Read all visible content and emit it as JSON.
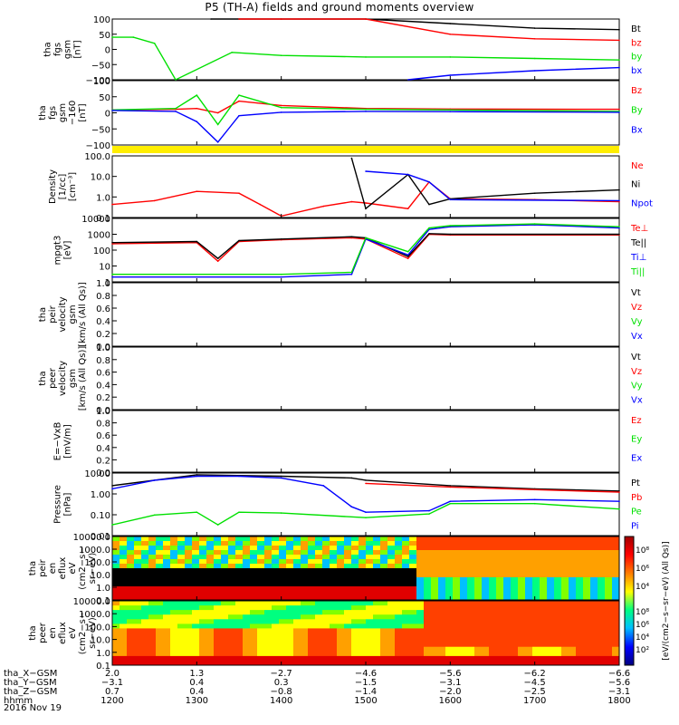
{
  "title": "P5 (TH-A) fields and ground moments overview",
  "date": "2016 Nov 19",
  "colors": {
    "black": "#000000",
    "red": "#ff0000",
    "green": "#00e000",
    "blue": "#0000ff",
    "yellow": "#ffee00"
  },
  "panels": [
    {
      "id": "fgs",
      "ylabel": [
        "tha",
        "fgs",
        "gsm",
        "[nT]"
      ],
      "ticks": [
        "100",
        "50",
        "0",
        "−50",
        "−100"
      ],
      "legend": [
        {
          "text": "Bt",
          "color": "black"
        },
        {
          "text": "bz",
          "color": "red"
        },
        {
          "text": "by",
          "color": "green"
        },
        {
          "text": "bx",
          "color": "blue"
        }
      ]
    },
    {
      "id": "fgs_dsl",
      "ylabel": [
        "tha",
        "fgs",
        "gsm",
        "−160",
        "[nT]"
      ],
      "ticks": [
        "100",
        "50",
        "0",
        "−50",
        "−100"
      ],
      "legend": [
        {
          "text": "Bz",
          "color": "red"
        },
        {
          "text": "By",
          "color": "green"
        },
        {
          "text": "Bx",
          "color": "blue"
        }
      ]
    },
    {
      "id": "density",
      "ylabel": [
        "Density",
        "[1/cc]",
        "[cm⁻³]"
      ],
      "ticks": [
        "100.0",
        "10.0",
        "1.0",
        "0.1"
      ],
      "legend": [
        {
          "text": "Ne",
          "color": "red"
        },
        {
          "text": "Ni",
          "color": "black"
        },
        {
          "text": "Npot",
          "color": "blue"
        }
      ]
    },
    {
      "id": "temp",
      "ylabel": [
        "mpgt3",
        "[eV]"
      ],
      "ticks": [
        "10000",
        "1000",
        "100",
        "10",
        "1"
      ],
      "legend": [
        {
          "text": "Te⊥",
          "color": "red"
        },
        {
          "text": "Te||",
          "color": "black"
        },
        {
          "text": "Ti⊥",
          "color": "blue"
        },
        {
          "text": "Ti||",
          "color": "green"
        }
      ]
    },
    {
      "id": "vel_i",
      "ylabel": [
        "tha",
        "peir",
        "velocity",
        "gsm",
        "[km/s (All Qs)]"
      ],
      "ticks": [
        "1.0",
        "0.8",
        "0.6",
        "0.4",
        "0.2",
        "0.0"
      ],
      "legend": [
        {
          "text": "Vt",
          "color": "black"
        },
        {
          "text": "Vz",
          "color": "red"
        },
        {
          "text": "Vy",
          "color": "green"
        },
        {
          "text": "Vx",
          "color": "blue"
        }
      ]
    },
    {
      "id": "vel_e",
      "ylabel": [
        "tha",
        "peer",
        "velocity",
        "gsm",
        "[km/s (All Qs)]"
      ],
      "ticks": [
        "1.0",
        "0.8",
        "0.6",
        "0.4",
        "0.2",
        "0.0"
      ],
      "legend": [
        {
          "text": "Vt",
          "color": "black"
        },
        {
          "text": "Vz",
          "color": "red"
        },
        {
          "text": "Vy",
          "color": "green"
        },
        {
          "text": "Vx",
          "color": "blue"
        }
      ]
    },
    {
      "id": "efield",
      "ylabel": [
        "E=−VxB",
        "[mV/m]"
      ],
      "ticks": [
        "1.0",
        "0.8",
        "0.6",
        "0.4",
        "0.2",
        "0.0"
      ],
      "legend": [
        {
          "text": "Ez",
          "color": "red"
        },
        {
          "text": "Ey",
          "color": "green"
        },
        {
          "text": "Ex",
          "color": "blue"
        }
      ]
    },
    {
      "id": "pressure",
      "ylabel": [
        "Pressure",
        "[nPa]"
      ],
      "ticks": [
        "10.00",
        "1.00",
        "0.10",
        "0.01"
      ],
      "legend": [
        {
          "text": "Pt",
          "color": "black"
        },
        {
          "text": "Pb",
          "color": "red"
        },
        {
          "text": "Pe",
          "color": "green"
        },
        {
          "text": "Pi",
          "color": "blue"
        }
      ]
    },
    {
      "id": "spec_i",
      "ylabel": [
        "tha",
        "peir",
        "en",
        "eflux",
        "eV",
        "(cm2−s−",
        "sr−eV)"
      ],
      "ticks": [
        "10000.0",
        "1000.0",
        "100.0",
        "10.0",
        "1.0",
        "0.1"
      ],
      "legend": []
    },
    {
      "id": "spec_e",
      "ylabel": [
        "tha",
        "peer",
        "en",
        "eflux",
        "eV",
        "(cm2−s−",
        "sr−eV)"
      ],
      "ticks": [
        "10000.0",
        "1000.0",
        "100.0",
        "10.0",
        "1.0",
        "0.1"
      ],
      "legend": []
    }
  ],
  "colorbar": {
    "ticks": [
      "10⁸",
      "10⁶",
      "10⁴"
    ],
    "ticks2": [
      "10⁸",
      "10⁶",
      "10⁴",
      "10²"
    ],
    "label": "[eV/(cm2−s−sr−eV) (All Qs)]"
  },
  "xaxis": {
    "rows": [
      {
        "label": "tha_X−GSM",
        "values": [
          "2.0",
          "1.3",
          "−2.7",
          "−4.6",
          "−5.6",
          "−6.2",
          "−6.6"
        ]
      },
      {
        "label": "tha_Y−GSM",
        "values": [
          "−3.1",
          "0.4",
          "0.3",
          "−1.5",
          "−3.1",
          "−4.5",
          "−5.6"
        ]
      },
      {
        "label": "tha_Z−GSM",
        "values": [
          "0.7",
          "0.4",
          "−0.8",
          "−1.4",
          "−2.0",
          "−2.5",
          "−3.1"
        ]
      },
      {
        "label": "hhmm",
        "values": [
          "1200",
          "1300",
          "1400",
          "1500",
          "1600",
          "1700",
          "1800"
        ]
      }
    ]
  },
  "chart_data": {
    "type": "line",
    "title": "P5 (TH-A) fields and ground moments overview",
    "x_unit": "hhmm",
    "x_ticks": [
      "1200",
      "1300",
      "1400",
      "1500",
      "1600",
      "1700",
      "1800"
    ],
    "xlim": [
      "1200",
      "1800"
    ],
    "panels": [
      {
        "id": "fgs",
        "scale": "linear",
        "ylim": [
          -100,
          100
        ],
        "series": [
          {
            "name": "Bt",
            "x": [
              "1310",
              "1330",
              "1400",
              "1500",
              "1600",
              "1700",
              "1800"
            ],
            "values": [
              100,
              100,
              100,
              100,
              85,
              70,
              65
            ]
          },
          {
            "name": "bz",
            "x": [
              "1330",
              "1400",
              "1500",
              "1600",
              "1700",
              "1800"
            ],
            "values": [
              100,
              100,
              100,
              50,
              35,
              30
            ]
          },
          {
            "name": "by",
            "x": [
              "1200",
              "1215",
              "1230",
              "1245",
              "1325",
              "1400",
              "1500",
              "1600",
              "1700",
              "1800"
            ],
            "values": [
              40,
              40,
              20,
              -100,
              -10,
              -20,
              -25,
              -25,
              -30,
              -35
            ]
          },
          {
            "name": "bx",
            "x": [
              "1530",
              "1600",
              "1700",
              "1800"
            ],
            "values": [
              -100,
              -85,
              -70,
              -60
            ]
          }
        ]
      },
      {
        "id": "fgs_dsl",
        "scale": "linear",
        "ylim": [
          -120,
          100
        ],
        "series": [
          {
            "name": "Bz",
            "x": [
              "1200",
              "1245",
              "1300",
              "1315",
              "1330",
              "1400",
              "1500",
              "1600",
              "1800"
            ],
            "values": [
              0,
              2,
              5,
              -10,
              30,
              15,
              5,
              3,
              2
            ]
          },
          {
            "name": "By",
            "x": [
              "1200",
              "1245",
              "1300",
              "1315",
              "1330",
              "1400",
              "1500",
              "1600",
              "1800"
            ],
            "values": [
              0,
              5,
              50,
              -50,
              50,
              8,
              2,
              0,
              -5
            ]
          },
          {
            "name": "Bx",
            "x": [
              "1200",
              "1245",
              "1300",
              "1315",
              "1330",
              "1400",
              "1500",
              "1600",
              "1800"
            ],
            "values": [
              -2,
              -5,
              -40,
              -110,
              -20,
              -8,
              -5,
              -6,
              -8
            ]
          }
        ]
      },
      {
        "id": "density",
        "scale": "log",
        "ylim": [
          0.1,
          200
        ],
        "series": [
          {
            "name": "Ne",
            "x": [
              "1200",
              "1230",
              "1300",
              "1330",
              "1345",
              "1400",
              "1430",
              "1450",
              "1500",
              "1530",
              "1545",
              "1600",
              "1700",
              "1800"
            ],
            "values": [
              0.5,
              0.8,
              2.5,
              2.0,
              0.5,
              0.12,
              0.4,
              0.7,
              0.6,
              0.3,
              8,
              1.0,
              0.9,
              0.7
            ]
          },
          {
            "name": "Ni",
            "x": [
              "1450",
              "1500",
              "1530",
              "1545",
              "1600",
              "1700",
              "1800"
            ],
            "values": [
              150,
              0.3,
              20,
              0.5,
              1.0,
              2.0,
              3.0
            ]
          },
          {
            "name": "Npot",
            "x": [
              "1500",
              "1530",
              "1545",
              "1600",
              "1800"
            ],
            "values": [
              30,
              20,
              8,
              0.9,
              0.8
            ]
          }
        ]
      },
      {
        "id": "temp",
        "scale": "log",
        "ylim": [
          1,
          10000
        ],
        "series": [
          {
            "name": "Te⊥",
            "x": [
              "1200",
              "1300",
              "1315",
              "1330",
              "1400",
              "1450",
              "1500",
              "1530",
              "1545",
              "1600",
              "1800"
            ],
            "values": [
              250,
              300,
              20,
              350,
              450,
              600,
              500,
              30,
              1000,
              900,
              900
            ]
          },
          {
            "name": "Te||",
            "x": [
              "1200",
              "1300",
              "1315",
              "1330",
              "1400",
              "1450",
              "1500",
              "1530",
              "1545",
              "1600",
              "1800"
            ],
            "values": [
              300,
              350,
              30,
              400,
              500,
              700,
              600,
              40,
              1100,
              1000,
              1000
            ]
          },
          {
            "name": "Ti⊥",
            "x": [
              "1200",
              "1400",
              "1450",
              "1500",
              "1530",
              "1545",
              "1600",
              "1700",
              "1800"
            ],
            "values": [
              2,
              2,
              3,
              500,
              50,
              2000,
              3000,
              4000,
              2500
            ]
          },
          {
            "name": "Ti||",
            "x": [
              "1200",
              "1400",
              "1450",
              "1500",
              "1530",
              "1545",
              "1600",
              "1700",
              "1800"
            ],
            "values": [
              3,
              3,
              4,
              600,
              80,
              2500,
              3500,
              4500,
              3000
            ]
          }
        ]
      },
      {
        "id": "vel_i",
        "scale": "linear",
        "ylim": [
          0,
          1
        ],
        "series": []
      },
      {
        "id": "vel_e",
        "scale": "linear",
        "ylim": [
          0,
          1
        ],
        "series": []
      },
      {
        "id": "efield",
        "scale": "linear",
        "ylim": [
          0,
          1
        ],
        "series": []
      },
      {
        "id": "pressure",
        "scale": "log",
        "ylim": [
          0.005,
          15
        ],
        "series": [
          {
            "name": "Pt",
            "x": [
              "1200",
              "1300",
              "1400",
              "1450",
              "1500",
              "1600",
              "1700",
              "1800"
            ],
            "values": [
              3,
              12,
              10,
              8,
              6,
              3,
              2,
              1.5
            ]
          },
          {
            "name": "Pb",
            "x": [
              "1500",
              "1600",
              "1700",
              "1800"
            ],
            "values": [
              4,
              2.5,
              1.8,
              1.3
            ]
          },
          {
            "name": "Pe",
            "x": [
              "1200",
              "1230",
              "1300",
              "1315",
              "1330",
              "1400",
              "1500",
              "1545",
              "1600",
              "1700",
              "1800"
            ],
            "values": [
              0.02,
              0.07,
              0.1,
              0.02,
              0.1,
              0.09,
              0.05,
              0.08,
              0.3,
              0.3,
              0.15
            ]
          },
          {
            "name": "Pi",
            "x": [
              "1200",
              "1230",
              "1300",
              "1330",
              "1400",
              "1430",
              "1450",
              "1500",
              "1545",
              "1600",
              "1700",
              "1800"
            ],
            "values": [
              2,
              6,
              10,
              10,
              8,
              3,
              0.2,
              0.1,
              0.12,
              0.4,
              0.5,
              0.4
            ]
          }
        ]
      },
      {
        "id": "spec_i",
        "type": "heatmap",
        "scale": "log",
        "ylim": [
          0.1,
          10000
        ]
      },
      {
        "id": "spec_e",
        "type": "heatmap",
        "scale": "log",
        "ylim": [
          0.1,
          10000
        ]
      }
    ]
  }
}
